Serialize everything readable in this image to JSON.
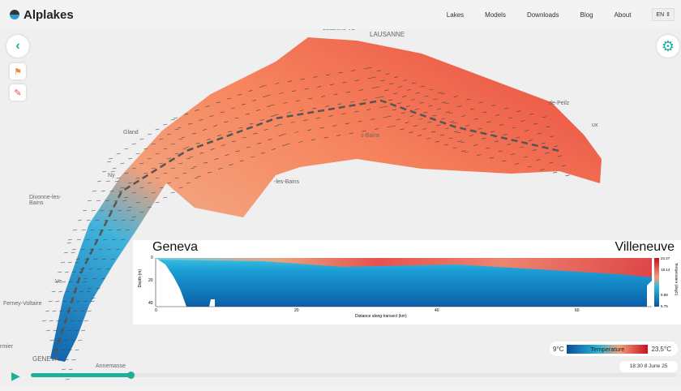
{
  "header": {
    "brand": "Alplakes",
    "nav": [
      "Lakes",
      "Models",
      "Downloads",
      "Blog",
      "About"
    ],
    "language": "EN"
  },
  "map_labels": [
    "Ecublens VD",
    "LAUSANNE",
    "Gland",
    "Ny",
    "Divonne-les-Bains",
    "Ferney-Voltaire",
    "Ve",
    "GENEVA",
    "Annemasse",
    "rmier",
    "de-Peilz",
    "ux",
    "s-Bains",
    "-les-Bains"
  ],
  "transect": {
    "start": "Geneva",
    "end": "Villeneuve",
    "ylabel": "Depth (m)",
    "xlabel": "Distance along transect (km)",
    "xticks": [
      "0",
      "20",
      "40",
      "60"
    ],
    "yticks": [
      "0",
      "20",
      "40"
    ],
    "colorbar_ticks": [
      "22.27",
      "18.14",
      "9.88",
      "5.75"
    ],
    "colorbar_label": "Temperature (degC)"
  },
  "legend": {
    "min": "9°C",
    "label": "Temperature",
    "max": "23.5°C"
  },
  "timeline": {
    "datetime": "18:30 8 June 25",
    "progress": 0.155
  },
  "colors": {
    "accent": "#1eae9a",
    "cold": "#0b4f9c",
    "warm": "#e8483f"
  }
}
